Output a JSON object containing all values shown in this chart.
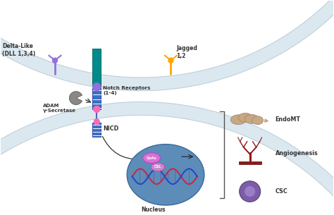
{
  "bg_color": "#ffffff",
  "mem_fill": "#dce8f0",
  "mem_edge": "#b8ccd8",
  "teal": "#008B8B",
  "teal_dark": "#006666",
  "blue_rec": "#3B6FC4",
  "blue_dark": "#2244AA",
  "purple_dot": "#9370DB",
  "pink_dot": "#FF69B4",
  "orange": "#FFA500",
  "purple_lig": "#9370DB",
  "gray_adam": "#888888",
  "nucleus_fill": "#5B8DB8",
  "nucleus_edge": "#3a6a9a",
  "coa_fill": "#DA70D6",
  "csl_fill": "#CC88CC",
  "dna_red": "#CC2244",
  "dna_blue": "#2244CC",
  "dark_red": "#8B1A1A",
  "tan_cell": "#C8A882",
  "tan_edge": "#9a8070",
  "purple_csc": "#7B5EA7",
  "purple_csc_inner": "#9B7EC7",
  "text_color": "#333333",
  "bracket_color": "#555555",
  "labels": {
    "delta_like": "Delta-Like\n(DLL 1,3,4)",
    "jagged": "Jagged\n1,2",
    "notch_receptors": "Notch Receptors\n(1-4)",
    "adam": "ADAM\nγ-Secretase",
    "nicd": "NICD",
    "nucleus": "Nucleus",
    "endomt": "EndoMT",
    "angiogenesis": "Angiogenesis",
    "csc": "CSC",
    "coa": "CoAs",
    "csl": "CSL"
  }
}
